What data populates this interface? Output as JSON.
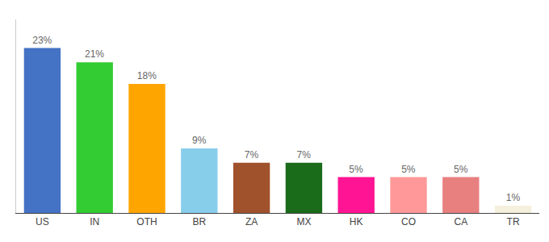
{
  "chart_data": {
    "type": "bar",
    "categories": [
      "US",
      "IN",
      "OTH",
      "BR",
      "ZA",
      "MX",
      "HK",
      "CO",
      "CA",
      "TR"
    ],
    "values": [
      23,
      21,
      18,
      9,
      7,
      7,
      5,
      5,
      5,
      1
    ],
    "value_labels": [
      "23%",
      "21%",
      "18%",
      "9%",
      "7%",
      "7%",
      "5%",
      "5%",
      "5%",
      "1%"
    ],
    "colors": [
      "#4472C4",
      "#33CC33",
      "#FFA500",
      "#87CEEB",
      "#A0522D",
      "#1A6B1A",
      "#FF1493",
      "#FF9999",
      "#E88080",
      "#F5F0DC"
    ],
    "ylim": [
      0,
      27
    ],
    "data_labels": true,
    "tick_labels": "x",
    "grid": false
  }
}
